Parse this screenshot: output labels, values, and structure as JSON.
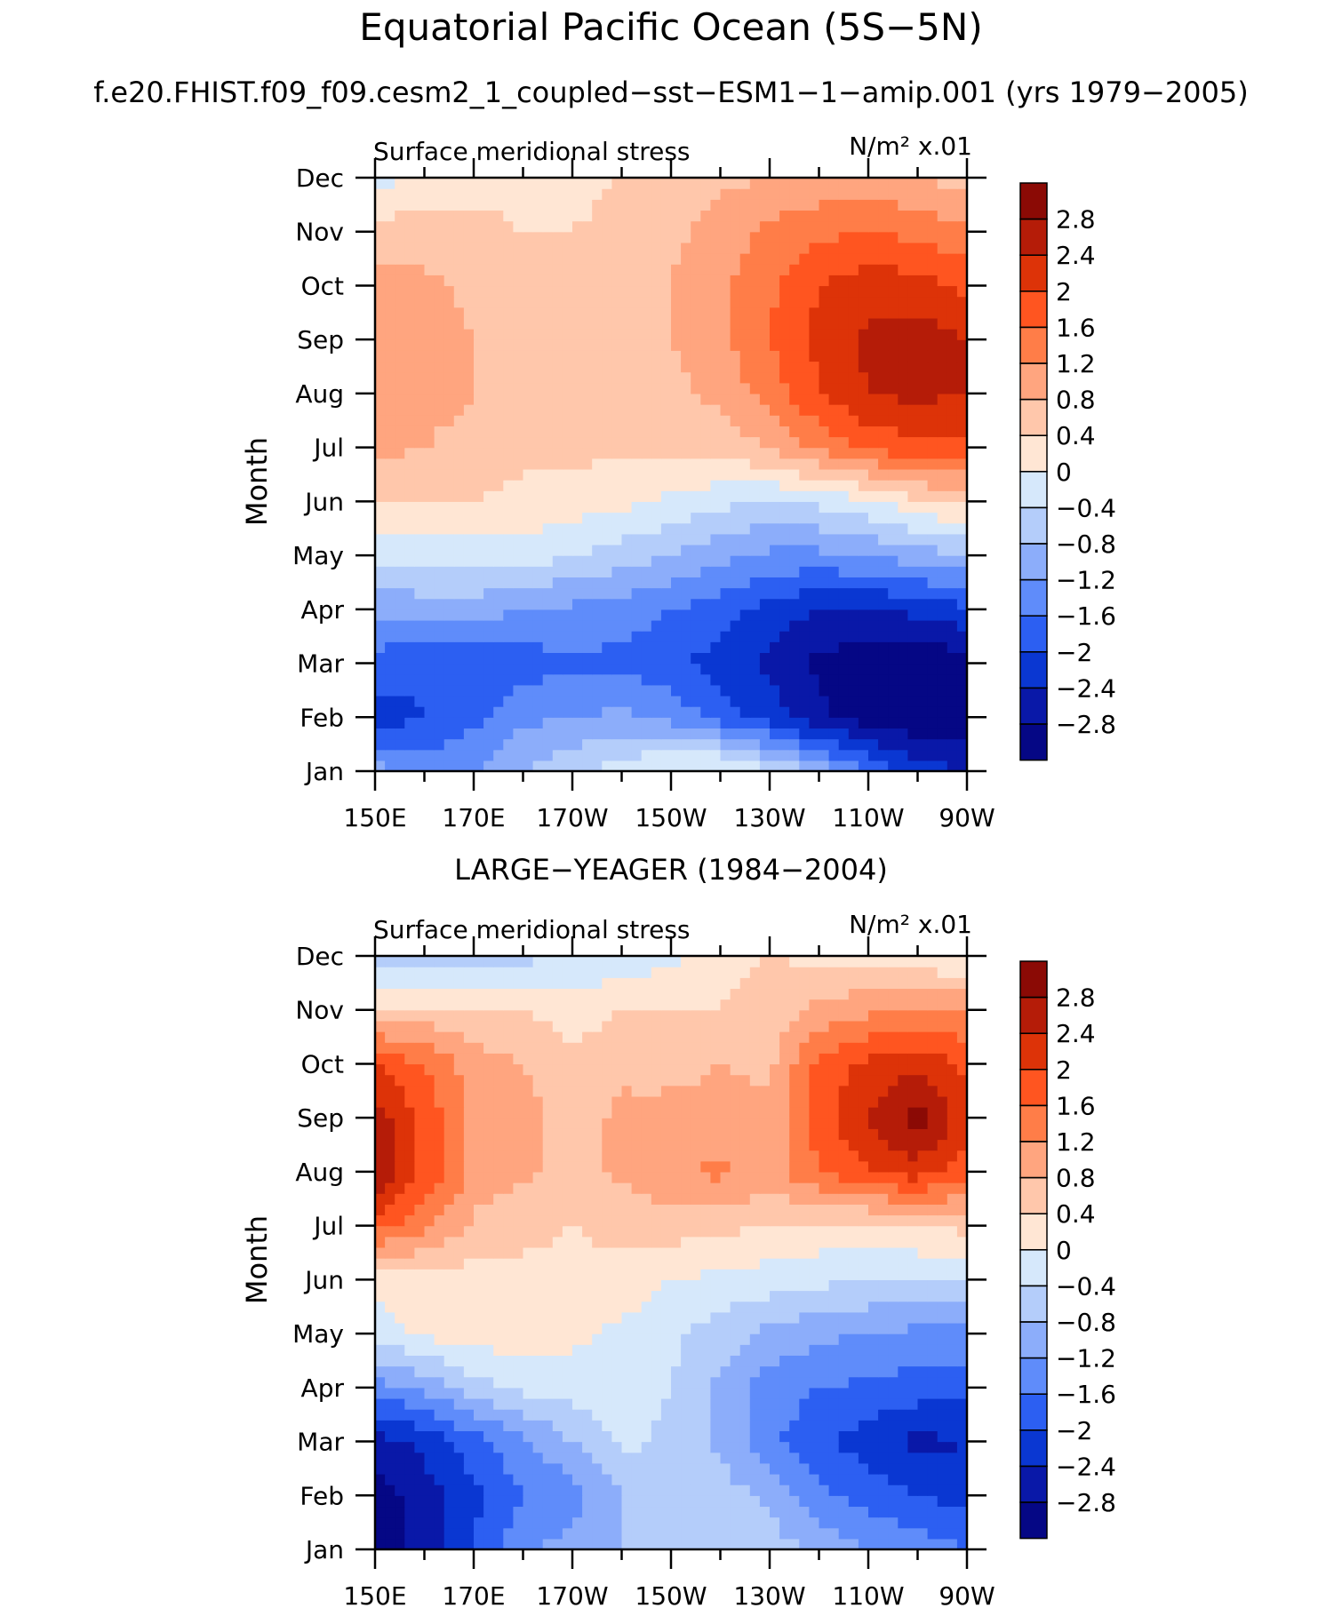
{
  "title": "Equatorial Pacific Ocean (5S−5N)",
  "subtitle": "f.e20.FHIST.f09_f09.cesm2_1_coupled−sst−ESM1−1−amip.001 (yrs 1979−2005)",
  "colorbar": {
    "labels": [
      "2.8",
      "2.4",
      "2",
      "1.6",
      "1.2",
      "0.8",
      "0.4",
      "0",
      "−0.4",
      "−0.8",
      "−1.2",
      "−1.6",
      "−2",
      "−2.4",
      "−2.8"
    ],
    "levels": [
      2.8,
      2.4,
      2.0,
      1.6,
      1.2,
      0.8,
      0.4,
      0.0,
      -0.4,
      -0.8,
      -1.2,
      -1.6,
      -2.0,
      -2.4,
      -2.8
    ],
    "colors": [
      "#8b0a05",
      "#b51c08",
      "#dd3308",
      "#ff5520",
      "#ff7d48",
      "#ffa57f",
      "#ffc7ab",
      "#ffe6d4",
      "#d6e8fb",
      "#b4cdfa",
      "#8cadfa",
      "#5f8cfa",
      "#2c5ff2",
      "#0a37d2",
      "#0918a8",
      "#050785"
    ]
  },
  "chart_data": [
    {
      "type": "heatmap",
      "panel_title": "",
      "left_label": "Surface meridional stress",
      "right_label": "N/m² x.01",
      "xlabel": "",
      "ylabel": "Month",
      "x_tick_labels": [
        "150E",
        "170E",
        "170W",
        "150W",
        "130W",
        "110W",
        "90W"
      ],
      "y_tick_labels": [
        "Jan",
        "Feb",
        "Mar",
        "Apr",
        "May",
        "Jun",
        "Jul",
        "Aug",
        "Sep",
        "Oct",
        "Nov",
        "Dec"
      ],
      "xlim": [
        150,
        270
      ],
      "units": "N/m2 x 0.01",
      "columns_lon": [
        150,
        160,
        170,
        180,
        190,
        200,
        210,
        220,
        230,
        240,
        250,
        260,
        270
      ],
      "rows": [
        [
          -1.0,
          -1.4,
          -1.2,
          -0.8,
          -0.5,
          -0.2,
          0.1,
          0.2,
          -0.3,
          -0.9,
          -1.6,
          -2.2,
          -2.4
        ],
        [
          -2.2,
          -2.0,
          -1.7,
          -1.3,
          -1.2,
          -1.1,
          -1.3,
          -1.8,
          -2.2,
          -2.7,
          -3.0,
          -3.1,
          -3.0
        ],
        [
          -1.8,
          -1.9,
          -1.9,
          -1.8,
          -1.7,
          -1.7,
          -1.9,
          -2.2,
          -2.5,
          -2.9,
          -3.1,
          -3.2,
          -3.0
        ],
        [
          -1.1,
          -1.0,
          -1.0,
          -1.2,
          -1.3,
          -1.4,
          -1.6,
          -1.8,
          -2.2,
          -2.4,
          -2.4,
          -2.3,
          -2.1
        ],
        [
          -0.3,
          -0.3,
          -0.2,
          -0.2,
          -0.4,
          -0.6,
          -0.8,
          -1.1,
          -1.3,
          -1.3,
          -1.2,
          -1.0,
          -0.8
        ],
        [
          0.4,
          0.4,
          0.4,
          0.3,
          0.2,
          0.1,
          -0.1,
          -0.3,
          -0.4,
          -0.3,
          -0.1,
          0.3,
          0.5
        ],
        [
          0.9,
          0.8,
          0.6,
          0.5,
          0.5,
          0.5,
          0.5,
          0.6,
          0.8,
          1.3,
          1.7,
          1.9,
          1.9
        ],
        [
          1.1,
          1.0,
          0.8,
          0.6,
          0.6,
          0.6,
          0.7,
          0.9,
          1.4,
          2.0,
          2.4,
          2.5,
          2.4
        ],
        [
          1.1,
          1.0,
          0.8,
          0.6,
          0.6,
          0.6,
          0.8,
          1.1,
          1.6,
          2.1,
          2.5,
          2.6,
          2.4
        ],
        [
          1.0,
          0.9,
          0.7,
          0.6,
          0.6,
          0.6,
          0.8,
          1.1,
          1.5,
          2.0,
          2.2,
          2.2,
          1.9
        ],
        [
          0.6,
          0.6,
          0.5,
          0.4,
          0.4,
          0.5,
          0.7,
          1.0,
          1.3,
          1.5,
          1.6,
          1.5,
          1.3
        ],
        [
          -0.2,
          0.1,
          0.3,
          0.3,
          0.3,
          0.4,
          0.5,
          0.7,
          0.8,
          0.9,
          0.9,
          0.8,
          0.6
        ]
      ]
    },
    {
      "type": "heatmap",
      "panel_title": "LARGE−YEAGER (1984−2004)",
      "left_label": "Surface meridional stress",
      "right_label": "N/m² x.01",
      "xlabel": "",
      "ylabel": "Month",
      "x_tick_labels": [
        "150E",
        "170E",
        "170W",
        "150W",
        "130W",
        "110W",
        "90W"
      ],
      "y_tick_labels": [
        "Jan",
        "Feb",
        "Mar",
        "Apr",
        "May",
        "Jun",
        "Jul",
        "Aug",
        "Sep",
        "Oct",
        "Nov",
        "Dec"
      ],
      "xlim": [
        150,
        270
      ],
      "units": "N/m2 x 0.01",
      "columns_lon": [
        150,
        160,
        170,
        180,
        190,
        200,
        210,
        220,
        230,
        240,
        250,
        260,
        270
      ],
      "rows": [
        [
          -3.0,
          -2.7,
          -2.0,
          -1.3,
          -1.0,
          -0.8,
          -0.4,
          -0.4,
          -0.6,
          -0.9,
          -1.2,
          -1.4,
          -1.6
        ],
        [
          -3.0,
          -2.6,
          -2.1,
          -1.6,
          -1.4,
          -0.8,
          -0.5,
          -0.6,
          -0.9,
          -1.5,
          -1.8,
          -2.0,
          -2.2
        ],
        [
          -2.6,
          -2.3,
          -1.8,
          -1.3,
          -0.8,
          -0.3,
          -0.5,
          -0.9,
          -1.5,
          -1.9,
          -2.2,
          -2.5,
          -2.4
        ],
        [
          -1.4,
          -1.1,
          -0.6,
          -0.3,
          -0.2,
          -0.1,
          -0.4,
          -0.9,
          -1.4,
          -1.6,
          -1.7,
          -1.8,
          -1.9
        ],
        [
          -0.2,
          0.1,
          0.2,
          0.2,
          0.1,
          -0.1,
          -0.3,
          -0.6,
          -0.9,
          -1.1,
          -1.2,
          -1.3,
          -1.3
        ],
        [
          0.1,
          0.2,
          0.2,
          0.3,
          0.3,
          0.3,
          0.0,
          -0.1,
          -0.2,
          -0.3,
          -0.4,
          -0.4,
          -0.3
        ],
        [
          1.8,
          1.3,
          0.7,
          0.5,
          0.4,
          0.5,
          0.6,
          0.5,
          0.4,
          0.3,
          0.3,
          0.4,
          0.5
        ],
        [
          2.8,
          1.9,
          1.1,
          0.9,
          0.6,
          0.9,
          1.1,
          1.3,
          1.0,
          1.6,
          2.0,
          2.2,
          1.8
        ],
        [
          2.6,
          1.9,
          1.1,
          1.0,
          0.6,
          0.9,
          1.0,
          1.0,
          0.9,
          1.8,
          2.4,
          3.0,
          2.2
        ],
        [
          2.0,
          1.6,
          1.0,
          0.8,
          0.5,
          0.7,
          0.6,
          0.8,
          0.7,
          1.7,
          2.1,
          2.3,
          1.9
        ],
        [
          0.5,
          0.5,
          0.4,
          0.4,
          0.2,
          0.4,
          0.4,
          0.4,
          0.6,
          0.9,
          1.1,
          1.3,
          1.2
        ],
        [
          -0.7,
          -0.7,
          -0.6,
          -0.5,
          -0.4,
          -0.3,
          -0.1,
          0.3,
          0.4,
          0.3,
          0.3,
          0.1,
          -0.1
        ]
      ]
    }
  ]
}
